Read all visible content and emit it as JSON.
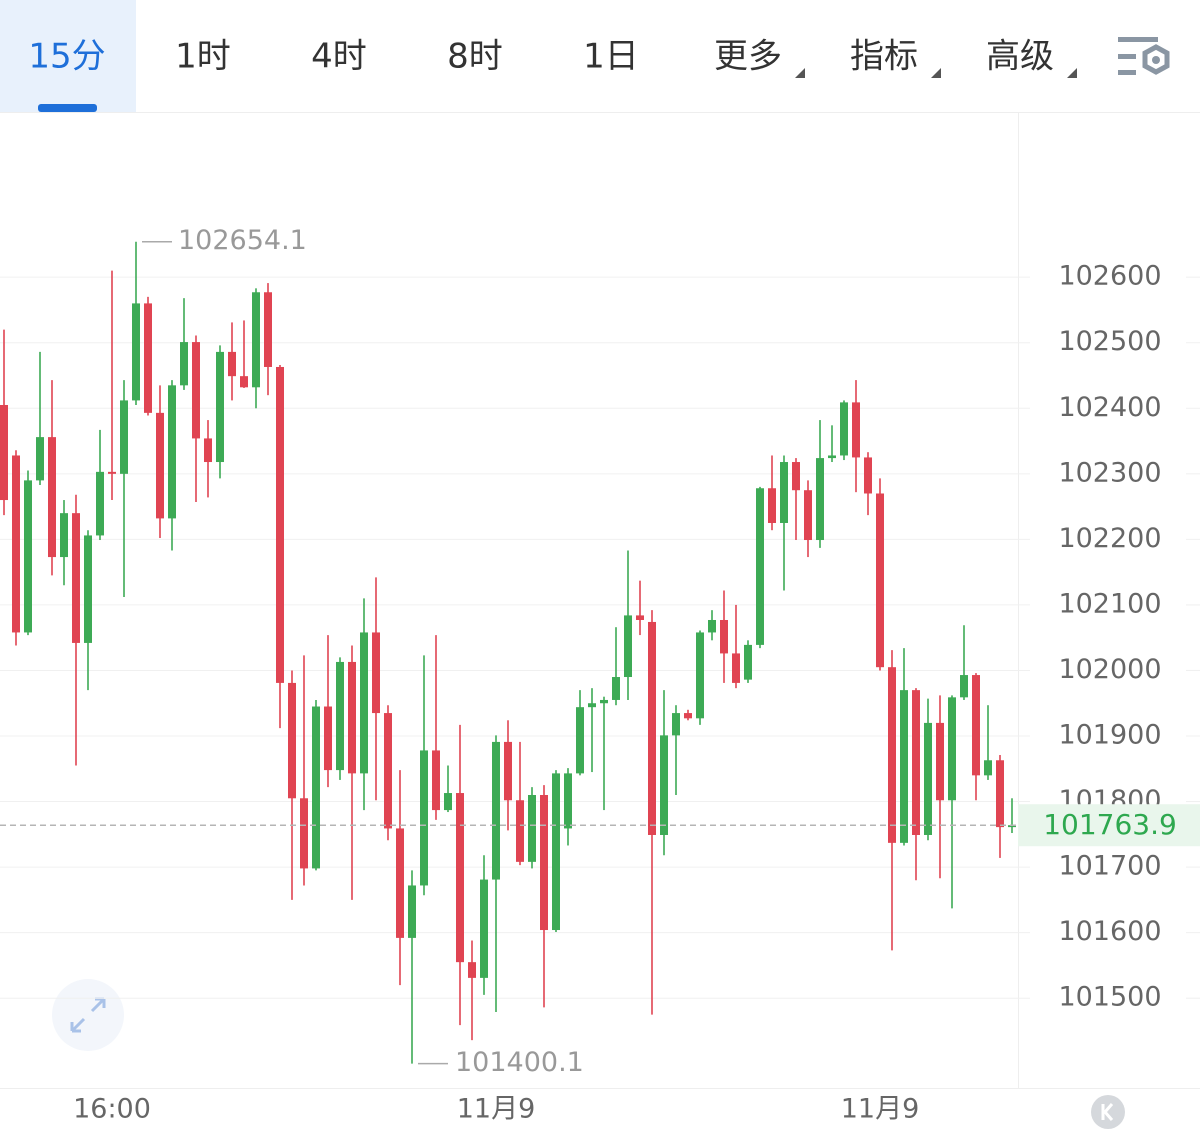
{
  "toolbar": {
    "tabs": [
      "15分",
      "1时",
      "4时",
      "8时",
      "1日",
      "更多",
      "指标",
      "高级"
    ],
    "active": 0,
    "dropdown": [
      5,
      6,
      7
    ]
  },
  "chart_data": {
    "type": "candlestick",
    "categories": [
      null,
      null,
      null,
      null,
      null,
      null,
      null,
      null,
      null,
      "16:00",
      null,
      null,
      null,
      null,
      null,
      null,
      null,
      null,
      null,
      null,
      null,
      null,
      null,
      null,
      null,
      null,
      null,
      null,
      null,
      null,
      null,
      null,
      null,
      null,
      null,
      null,
      null,
      null,
      null,
      null,
      null,
      "11月9",
      null,
      null,
      null,
      null,
      null,
      null,
      null,
      null,
      null,
      null,
      null,
      null,
      null,
      null,
      null,
      null,
      null,
      null,
      null,
      null,
      null,
      null,
      null,
      null,
      null,
      null,
      null,
      null,
      null,
      null,
      null,
      "11月9",
      null,
      null,
      null,
      null,
      null,
      null,
      null,
      null,
      null,
      null,
      null
    ],
    "open": [
      102405,
      102328,
      102058,
      102290,
      102356,
      102173,
      102240,
      102042,
      102206,
      102303,
      102300,
      102412,
      102560,
      102393,
      102232,
      102435,
      102501,
      102354,
      102318,
      102486,
      102449,
      102432,
      102577,
      102463,
      101981,
      101805,
      101698,
      101945,
      101848,
      102013,
      101843,
      102058,
      101935,
      101759,
      101592,
      101672,
      101878,
      101787,
      101813,
      101555,
      101531,
      101681,
      101891,
      101802,
      101708,
      101810,
      101604,
      101759,
      101843,
      101944,
      101950,
      101955,
      101990,
      102084,
      102074,
      101749,
      101901,
      101935,
      101927,
      102058,
      102077,
      102026,
      101986,
      102039,
      102278,
      102225,
      102318,
      102275,
      102199,
      102324,
      102328,
      102409,
      102325,
      102270,
      102005,
      101737,
      101970,
      101749,
      101920,
      101802,
      101959,
      101993,
      101840,
      101863,
      101761
    ],
    "high": [
      102520,
      102336,
      102305,
      102486,
      102443,
      102260,
      102268,
      102214,
      102367,
      102610,
      102443,
      102654.1,
      102570,
      102435,
      102443,
      102568,
      102511,
      102382,
      102496,
      102531,
      102534,
      102583,
      102591,
      102466,
      102000,
      102023,
      101955,
      102054,
      102020,
      102038,
      102110,
      102142,
      101947,
      101848,
      101695,
      102023,
      102054,
      101855,
      101917,
      101588,
      101718,
      101901,
      101924,
      101891,
      101822,
      101825,
      101848,
      101851,
      101970,
      101973,
      101960,
      102066,
      102183,
      102137,
      102092,
      101970,
      101947,
      101940,
      102061,
      102092,
      102122,
      102100,
      102046,
      102280,
      102328,
      102328,
      102324,
      102290,
      102382,
      102374,
      102412,
      102443,
      102333,
      102293,
      102031,
      102034,
      101973,
      101957,
      101962,
      101962,
      102069,
      101996,
      101947,
      101871,
      101805
    ],
    "low": [
      102237,
      102038,
      102054,
      102283,
      102145,
      102130,
      101855,
      101970,
      102199,
      102260,
      102112,
      102405,
      102389,
      102202,
      102183,
      102428,
      102257,
      102264,
      102293,
      102412,
      102431,
      102400,
      102420,
      101912,
      101650,
      101672,
      101695,
      101822,
      101833,
      101650,
      101787,
      101802,
      101741,
      101520,
      101400.1,
      101657,
      101772,
      101784,
      101459,
      101436,
      101505,
      101479,
      101756,
      101703,
      101698,
      101486,
      101601,
      101733,
      101840,
      101845,
      101787,
      101947,
      101955,
      102054,
      101475,
      101718,
      101810,
      101924,
      101917,
      102046,
      101981,
      101973,
      101981,
      102034,
      102214,
      102122,
      102199,
      102173,
      102187,
      102318,
      102321,
      102272,
      102237,
      102000,
      101573,
      101733,
      101680,
      101741,
      101683,
      101637,
      101955,
      101802,
      101833,
      101714,
      101752
    ],
    "close": [
      102260,
      102058,
      102290,
      102356,
      102173,
      102240,
      102042,
      102206,
      102303,
      102300,
      102412,
      102560,
      102393,
      102232,
      102435,
      102501,
      102354,
      102318,
      102486,
      102449,
      102432,
      102577,
      102463,
      101981,
      101805,
      101698,
      101945,
      101848,
      102013,
      101843,
      102058,
      101935,
      101759,
      101592,
      101672,
      101878,
      101787,
      101813,
      101555,
      101531,
      101681,
      101891,
      101802,
      101708,
      101810,
      101604,
      101843,
      101843,
      101944,
      101950,
      101955,
      101990,
      102084,
      102077,
      101749,
      101901,
      101935,
      101927,
      102058,
      102077,
      102026,
      101981,
      102039,
      102278,
      102225,
      102318,
      102275,
      102199,
      102324,
      102328,
      102409,
      102325,
      102270,
      102005,
      101737,
      101970,
      101749,
      101920,
      101802,
      101959,
      101993,
      101840,
      101863,
      101761,
      101763.9
    ],
    "up_color": "#3daa55",
    "down_color": "#e04452",
    "ylim": [
      101363,
      102852
    ],
    "yticks": [
      101500,
      101600,
      101700,
      101800,
      101900,
      102000,
      102100,
      102200,
      102300,
      102400,
      102500,
      102600
    ],
    "grid": true,
    "max_index": 11,
    "min_index": 34,
    "last_price_color": "#2ea84f"
  }
}
